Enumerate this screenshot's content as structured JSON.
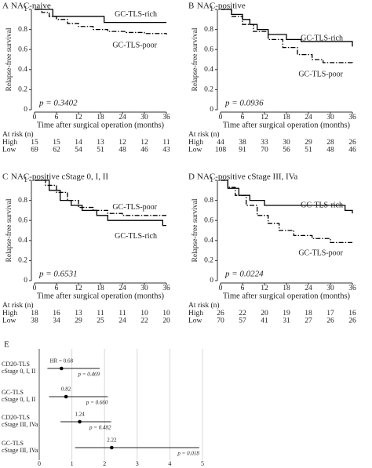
{
  "chart_data": [
    {
      "type": "step",
      "label": "A",
      "title": "NAC-naive",
      "ylabel": "Relapse-free survival",
      "xlabel": "Time after surgical operation (months)",
      "annotation": "p = 0.3402",
      "xlim": [
        0,
        36
      ],
      "xticks": [
        0,
        6,
        12,
        18,
        24,
        30,
        36
      ],
      "ylim": [
        0,
        1
      ],
      "yticks": [
        0,
        0.2,
        0.4,
        0.6,
        0.8,
        1
      ],
      "series": [
        {
          "name": "GC-TLS-rich",
          "color": "#000000",
          "x": [
            0,
            5,
            19,
            36
          ],
          "values": [
            1,
            0.93,
            0.87,
            0.87
          ]
        },
        {
          "name": "GC-TLS-poor",
          "color": "#000000",
          "x": [
            0,
            2,
            4,
            6,
            9,
            12,
            16,
            20,
            25,
            30,
            36
          ],
          "values": [
            1,
            0.97,
            0.93,
            0.9,
            0.86,
            0.83,
            0.8,
            0.78,
            0.77,
            0.76,
            0.75
          ]
        }
      ],
      "risk_table": {
        "title": "At risk (n)",
        "rows": [
          {
            "name": "High",
            "values": [
              15,
              15,
              14,
              13,
              12,
              12,
              11
            ]
          },
          {
            "name": "Low",
            "values": [
              69,
              62,
              54,
              51,
              48,
              46,
              43
            ]
          }
        ]
      }
    },
    {
      "type": "step",
      "label": "B",
      "title": "NAC-positive",
      "ylabel": "Relapse-free survival",
      "xlabel": "Time after surgical operation (months)",
      "annotation": "p = 0.0936",
      "xlim": [
        0,
        36
      ],
      "xticks": [
        0,
        6,
        12,
        18,
        24,
        30,
        36
      ],
      "ylim": [
        0,
        1
      ],
      "yticks": [
        0,
        0.2,
        0.4,
        0.6,
        0.8,
        1
      ],
      "series": [
        {
          "name": "GC-TLS-rich",
          "color": "#000000",
          "x": [
            0,
            3,
            6,
            8,
            10,
            13,
            18,
            22,
            34,
            36
          ],
          "values": [
            1,
            0.95,
            0.9,
            0.85,
            0.8,
            0.75,
            0.7,
            0.68,
            0.68,
            0.63
          ]
        },
        {
          "name": "GC-TLS-poor",
          "color": "#000000",
          "x": [
            0,
            3,
            6,
            9,
            13,
            17,
            21,
            25,
            28,
            36
          ],
          "values": [
            1,
            0.93,
            0.85,
            0.78,
            0.7,
            0.62,
            0.55,
            0.5,
            0.47,
            0.46
          ]
        }
      ],
      "risk_table": {
        "title": "At risk (n)",
        "rows": [
          {
            "name": "High",
            "values": [
              44,
              38,
              33,
              30,
              29,
              28,
              26
            ]
          },
          {
            "name": "Low",
            "values": [
              108,
              91,
              70,
              56,
              51,
              48,
              46
            ]
          }
        ]
      }
    },
    {
      "type": "step",
      "label": "C",
      "title": "NAC-positive cStage 0, I, II",
      "ylabel": "Relapse-free survival",
      "xlabel": "Time after surgical operation (months)",
      "annotation": "p = 0.6531",
      "xlim": [
        0,
        36
      ],
      "xticks": [
        0,
        6,
        12,
        18,
        24,
        30,
        36
      ],
      "ylim": [
        0,
        1
      ],
      "yticks": [
        0,
        0.2,
        0.4,
        0.6,
        0.8,
        1
      ],
      "series": [
        {
          "name": "GC-TLS-poor",
          "color": "#000000",
          "x": [
            0,
            3,
            6,
            9,
            12,
            16,
            20,
            24,
            36
          ],
          "values": [
            1,
            0.95,
            0.88,
            0.8,
            0.73,
            0.7,
            0.67,
            0.65,
            0.65
          ]
        },
        {
          "name": "GC-TLS-rich",
          "color": "#000000",
          "x": [
            0,
            4,
            7,
            10,
            13,
            17,
            20,
            33,
            35,
            36
          ],
          "values": [
            1,
            0.9,
            0.8,
            0.75,
            0.7,
            0.65,
            0.6,
            0.6,
            0.55,
            0.55
          ]
        }
      ],
      "risk_table": {
        "title": "At risk (n)",
        "rows": [
          {
            "name": "High",
            "values": [
              18,
              16,
              13,
              11,
              11,
              10,
              10
            ]
          },
          {
            "name": "Low",
            "values": [
              38,
              34,
              29,
              25,
              24,
              22,
              20
            ]
          }
        ]
      }
    },
    {
      "type": "step",
      "label": "D",
      "title": "NAC-positive cStage III, IVa",
      "ylabel": "Relapse-free survival",
      "xlabel": "Time after surgical operation (months)",
      "annotation": "p = 0.0224",
      "xlim": [
        0,
        36
      ],
      "xticks": [
        0,
        6,
        12,
        18,
        24,
        30,
        36
      ],
      "ylim": [
        0,
        1
      ],
      "yticks": [
        0,
        0.2,
        0.4,
        0.6,
        0.8,
        1
      ],
      "series": [
        {
          "name": "GC-TLS-rich",
          "color": "#000000",
          "x": [
            0,
            2,
            5,
            8,
            12,
            28,
            34,
            36
          ],
          "values": [
            1,
            0.92,
            0.85,
            0.8,
            0.75,
            0.75,
            0.7,
            0.67
          ]
        },
        {
          "name": "GC-TLS-poor",
          "color": "#000000",
          "x": [
            0,
            2,
            4,
            7,
            10,
            13,
            16,
            20,
            25,
            30,
            36
          ],
          "values": [
            1,
            0.93,
            0.85,
            0.75,
            0.65,
            0.57,
            0.5,
            0.45,
            0.42,
            0.38,
            0.38
          ]
        }
      ],
      "risk_table": {
        "title": "At risk (n)",
        "rows": [
          {
            "name": "High",
            "values": [
              26,
              22,
              20,
              19,
              18,
              17,
              16
            ]
          },
          {
            "name": "Low",
            "values": [
              70,
              57,
              41,
              31,
              27,
              26,
              26
            ]
          }
        ]
      }
    },
    {
      "type": "forest",
      "label": "E",
      "categories": [
        [
          "CD20-TLS",
          "cStage 0, I, II"
        ],
        [
          "GC-TLS",
          "cStage 0, I, II"
        ],
        [
          "CD20-TLS",
          "cStage III, IVa"
        ],
        [
          "GC-TLS",
          "cStage III, IVa"
        ]
      ],
      "values": [
        0.68,
        0.82,
        1.24,
        2.22
      ],
      "value_labels": [
        "HR = 0.68",
        "0.82",
        "1.24",
        "2.22"
      ],
      "ci_low": [
        0.25,
        0.3,
        0.65,
        1.1
      ],
      "ci_high": [
        1.85,
        2.1,
        2.2,
        4.9
      ],
      "p_labels": [
        "p = 0.469",
        "p = 0.660",
        "p = 0.482",
        "p = 0.018"
      ],
      "xlim": [
        0,
        5
      ],
      "xticks": [
        0,
        1,
        2,
        3,
        4,
        5
      ],
      "grid": true
    }
  ]
}
